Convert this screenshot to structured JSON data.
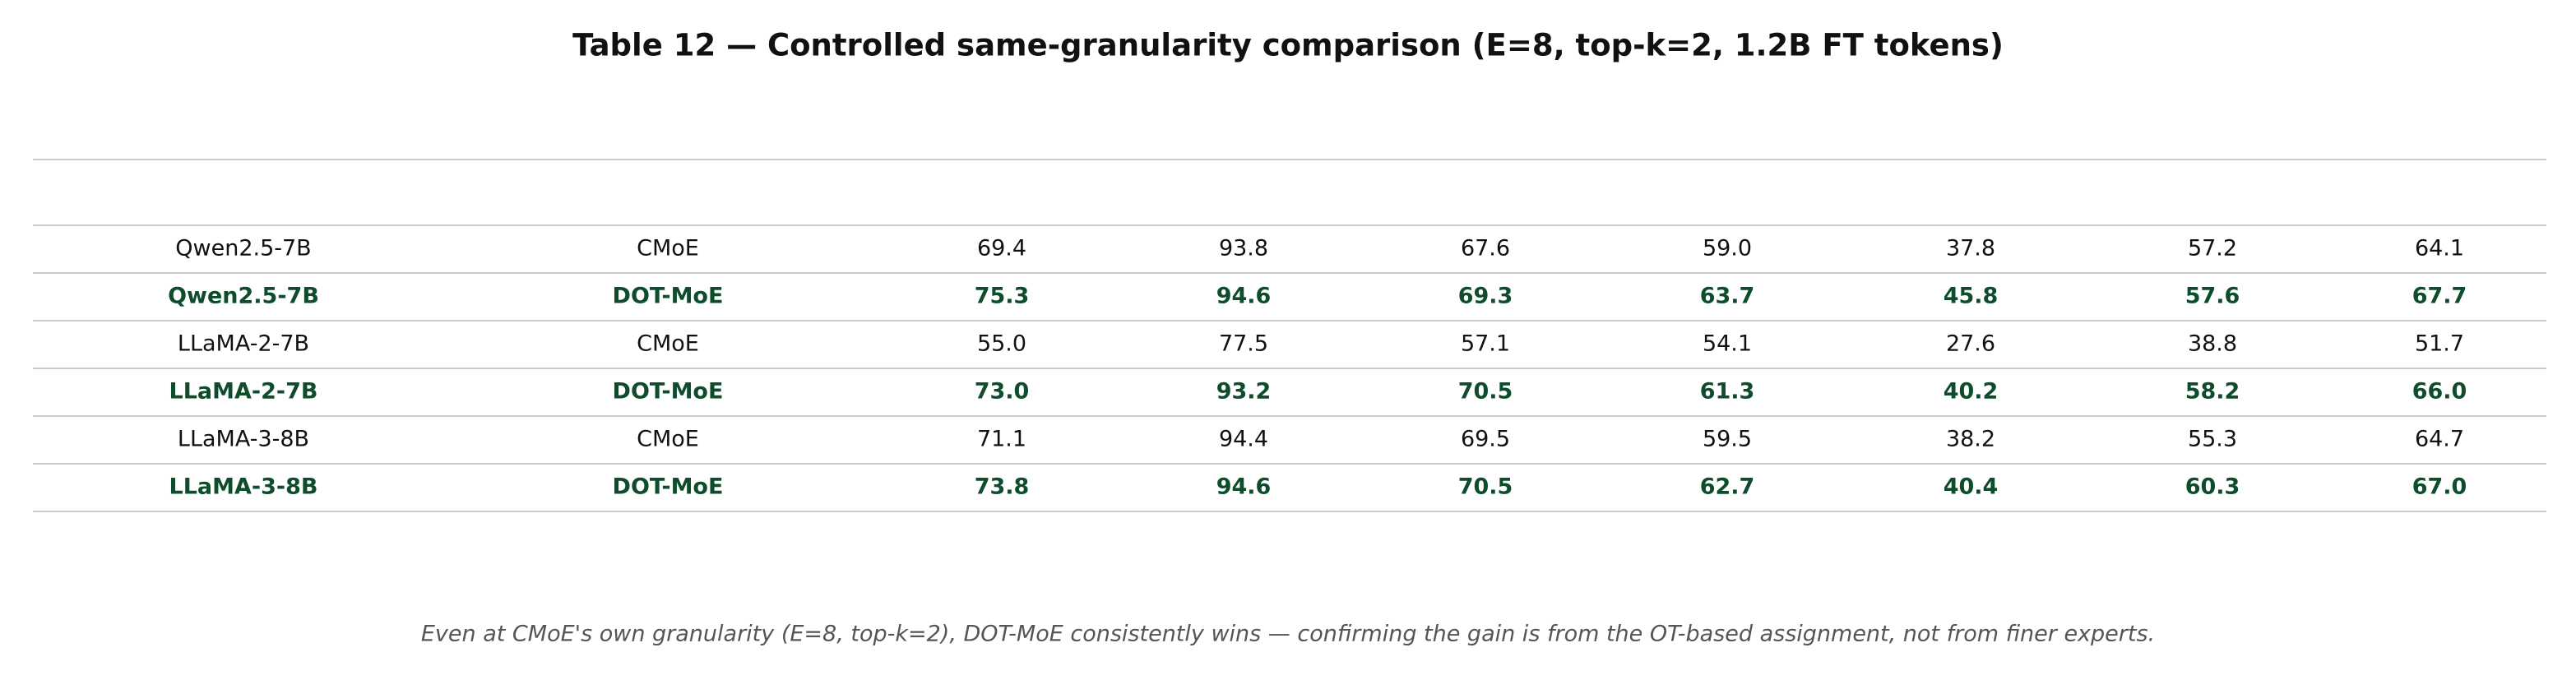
{
  "title": "Table 12 — Controlled same-granularity comparison (E=8, top-k=2, 1.2B FT tokens)",
  "table": {
    "rows": [
      [
        "Qwen2.5-7B",
        "CMoE",
        "69.4",
        "93.8",
        "67.6",
        "59.0",
        "37.8",
        "57.2",
        "64.1"
      ],
      [
        "Qwen2.5-7B",
        "DOT-MoE",
        "75.3",
        "94.6",
        "69.3",
        "63.7",
        "45.8",
        "57.6",
        "67.7"
      ],
      [
        "LLaMA-2-7B",
        "CMoE",
        "55.0",
        "77.5",
        "57.1",
        "54.1",
        "27.6",
        "38.8",
        "51.7"
      ],
      [
        "LLaMA-2-7B",
        "DOT-MoE",
        "73.0",
        "93.2",
        "70.5",
        "61.3",
        "40.2",
        "58.2",
        "66.0"
      ],
      [
        "LLaMA-3-8B",
        "CMoE",
        "71.1",
        "94.4",
        "69.5",
        "59.5",
        "38.2",
        "55.3",
        "64.7"
      ],
      [
        "LLaMA-3-8B",
        "DOT-MoE",
        "73.8",
        "94.6",
        "70.5",
        "62.7",
        "40.4",
        "60.3",
        "67.0"
      ]
    ],
    "highlight_rows": [
      1,
      3,
      5
    ],
    "highlight_color": "#0d4d2c"
  },
  "footnote": "Even at CMoE's own granularity (E=8, top-k=2), DOT-MoE consistently wins — confirming the gain is from the OT-based assignment, not from finer experts."
}
